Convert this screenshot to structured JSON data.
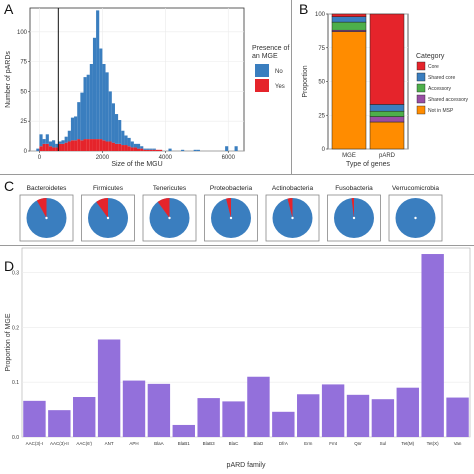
{
  "panel_labels": {
    "a": "A",
    "b": "B",
    "c": "C",
    "d": "D"
  },
  "chart_data": [
    {
      "id": "A",
      "type": "bar",
      "subtype": "stacked-histogram",
      "xlabel": "Size of the MGU",
      "ylabel": "Number of pARDs",
      "xlim": [
        -300,
        6500
      ],
      "ylim": [
        0,
        120
      ],
      "xticks": [
        0,
        2000,
        4000,
        6000
      ],
      "yticks": [
        0,
        25,
        50,
        75,
        100
      ],
      "bin_width": 100,
      "cutoff_line_x": 600,
      "legend": {
        "title": "Presence of an MGE",
        "position": "right",
        "entries": [
          {
            "name": "No",
            "color": "#3a7ebf"
          },
          {
            "name": "Yes",
            "color": "#e5242b"
          }
        ]
      },
      "bins_x": [
        -100,
        0,
        100,
        200,
        300,
        400,
        500,
        600,
        700,
        800,
        900,
        1000,
        1100,
        1200,
        1300,
        1400,
        1500,
        1600,
        1700,
        1800,
        1900,
        2000,
        2100,
        2200,
        2300,
        2400,
        2500,
        2600,
        2700,
        2800,
        2900,
        3000,
        3100,
        3200,
        3300,
        3400,
        3500,
        3600,
        3700,
        3800,
        3900,
        4000,
        4100,
        4200,
        4300,
        4400,
        4500,
        4600,
        4700,
        4800,
        4900,
        5000,
        5100,
        5200,
        5300,
        5400,
        5500,
        5600,
        5700,
        5800,
        5900,
        6000,
        6100,
        6200
      ],
      "series": [
        {
          "name": "Yes",
          "values": [
            0,
            4,
            6,
            6,
            4,
            3,
            3,
            6,
            6,
            7,
            8,
            9,
            9,
            10,
            9,
            10,
            10,
            10,
            10,
            10,
            10,
            9,
            8,
            8,
            7,
            6,
            6,
            5,
            5,
            4,
            3,
            3,
            2,
            2,
            1,
            1,
            1,
            1,
            1,
            1,
            0,
            0,
            0,
            0,
            0,
            0,
            0,
            0,
            0,
            0,
            0,
            0,
            0,
            0,
            0,
            0,
            0,
            0,
            0,
            0,
            0,
            0,
            0,
            0
          ]
        },
        {
          "name": "No",
          "values": [
            2,
            10,
            4,
            8,
            4,
            6,
            3,
            2,
            3,
            5,
            9,
            19,
            20,
            31,
            40,
            52,
            54,
            63,
            85,
            108,
            76,
            64,
            58,
            42,
            33,
            25,
            20,
            12,
            8,
            7,
            5,
            3,
            4,
            2,
            1,
            1,
            1,
            1,
            0,
            0,
            0,
            0,
            2,
            0,
            0,
            0,
            1,
            0,
            0,
            0,
            1,
            1,
            0,
            0,
            0,
            0,
            0,
            0,
            0,
            0,
            4,
            0,
            0,
            4
          ]
        }
      ]
    },
    {
      "id": "B",
      "type": "bar",
      "subtype": "stacked-proportion",
      "xlabel": "Type of genes",
      "ylabel": "Proportion",
      "ylim": [
        0,
        100
      ],
      "yticks": [
        0,
        25,
        50,
        75,
        100
      ],
      "categories": [
        "MGE",
        "pARD"
      ],
      "legend": {
        "title": "Category",
        "position": "right"
      },
      "series": [
        {
          "name": "Core",
          "color": "#e5242b",
          "values": [
            2,
            67
          ]
        },
        {
          "name": "Shared core",
          "color": "#3a7ebf",
          "values": [
            4,
            5
          ]
        },
        {
          "name": "Accessory",
          "color": "#4daf4a",
          "values": [
            6,
            4
          ]
        },
        {
          "name": "Shared accessory",
          "color": "#984ea3",
          "values": [
            1,
            4
          ]
        },
        {
          "name": "Not in MSP",
          "color": "#ff8c00",
          "values": [
            87,
            20
          ]
        }
      ]
    },
    {
      "id": "C",
      "type": "pie",
      "subtype": "small-multiples",
      "categories": [
        "Bacteroidetes",
        "Firmicutes",
        "Tenericutes",
        "Proteobacteria",
        "Actinobacteria",
        "Fusobacteria",
        "Verrucomicrobia"
      ],
      "slice_colors": {
        "Yes": "#e5242b",
        "No": "#3a7ebf"
      },
      "yes_fraction": [
        0.08,
        0.1,
        0.1,
        0.04,
        0.04,
        0.02,
        0.0
      ]
    },
    {
      "id": "D",
      "type": "bar",
      "xlabel": "pARD family",
      "ylabel": "Proportion of MGE",
      "ylim": [
        0,
        0.345
      ],
      "yticks": [
        0.0,
        0.1,
        0.2,
        0.3
      ],
      "ytick_labels": [
        "0.0",
        "0.1",
        "0.2",
        "0.3"
      ],
      "color": "#9370db",
      "categories": [
        "AAC(3)-I",
        "AAC(3)-II",
        "AAC(6')",
        "ANT",
        "APH",
        "BlaA",
        "BlaB1",
        "BlaB3",
        "BlaC",
        "BlaD",
        "DfrA",
        "Erm",
        "Fmt",
        "Qnr",
        "Sul",
        "Tet(M)",
        "Tet(X)",
        "Van"
      ],
      "values": [
        0.066,
        0.049,
        0.073,
        0.178,
        0.103,
        0.097,
        0.022,
        0.071,
        0.065,
        0.11,
        0.046,
        0.078,
        0.096,
        0.077,
        0.069,
        0.09,
        0.334,
        0.072
      ]
    }
  ]
}
